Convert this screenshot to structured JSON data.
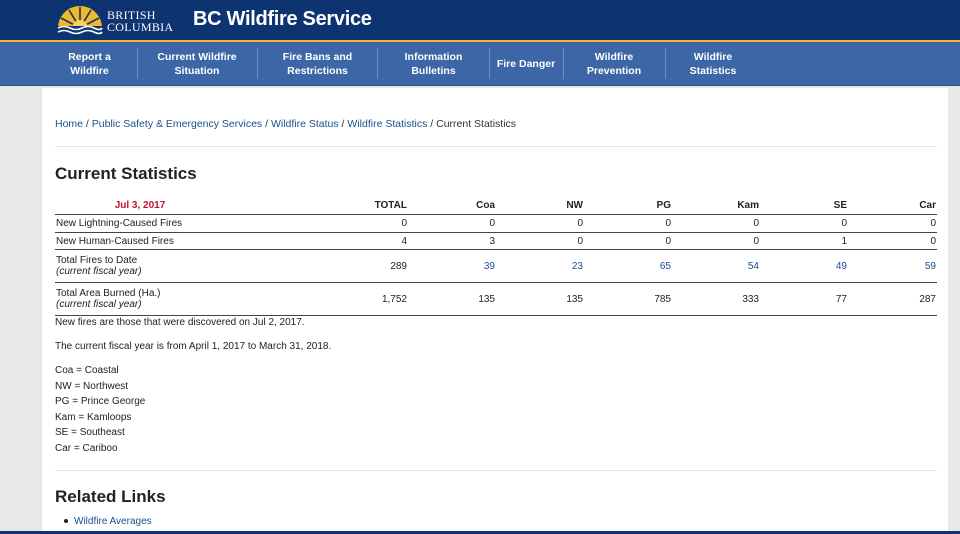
{
  "header": {
    "logo_line1": "BRITISH",
    "logo_line2": "COLUMBIA",
    "title": "BC Wildfire Service"
  },
  "nav": [
    "Report a Wildfire",
    "Current Wildfire\nSituation",
    "Fire Bans and\nRestrictions",
    "Information Bulletins",
    "Fire Danger",
    "Wildfire Prevention",
    "Wildfire Statistics"
  ],
  "breadcrumb": {
    "links": [
      "Home",
      "Public Safety & Emergency Services",
      "Wildfire Status",
      "Wildfire Statistics"
    ],
    "separator": " / ",
    "current": "Current Statistics"
  },
  "stats": {
    "heading": "Current Statistics",
    "date": "Jul 3, 2017",
    "columns": [
      "TOTAL",
      "Coa",
      "NW",
      "PG",
      "Kam",
      "SE",
      "Car"
    ],
    "rows": [
      {
        "label": "New Lightning-Caused Fires",
        "sub": "",
        "values": [
          "0",
          "0",
          "0",
          "0",
          "0",
          "0",
          "0"
        ]
      },
      {
        "label": "New Human-Caused Fires",
        "sub": "",
        "values": [
          "4",
          "3",
          "0",
          "0",
          "0",
          "1",
          "0"
        ]
      },
      {
        "label": "Total Fires to Date",
        "sub": "(current fiscal year)",
        "values": [
          "289",
          "39",
          "23",
          "65",
          "54",
          "49",
          "59"
        ]
      },
      {
        "label": "Total Area Burned (Ha.)",
        "sub": "(current fiscal year)",
        "values": [
          "1,752",
          "135",
          "135",
          "785",
          "333",
          "77",
          "287"
        ]
      }
    ],
    "note_new_fires": "New fires are those that were discovered on Jul 2, 2017.",
    "note_fiscal_year": "The current fiscal year is from April 1, 2017 to March 31, 2018."
  },
  "legend": [
    "Coa = Coastal",
    "NW = Northwest",
    "PG = Prince George",
    "Kam = Kamloops",
    "SE = Southeast",
    "Car = Cariboo"
  ],
  "related": {
    "heading": "Related Links",
    "links": [
      "Wildfire Averages"
    ]
  },
  "colors": {
    "header": "#0d3470",
    "nav": "#3c66a5",
    "accent": "#f2b829",
    "date": "#c8102e",
    "link": "#1a4f8f"
  }
}
